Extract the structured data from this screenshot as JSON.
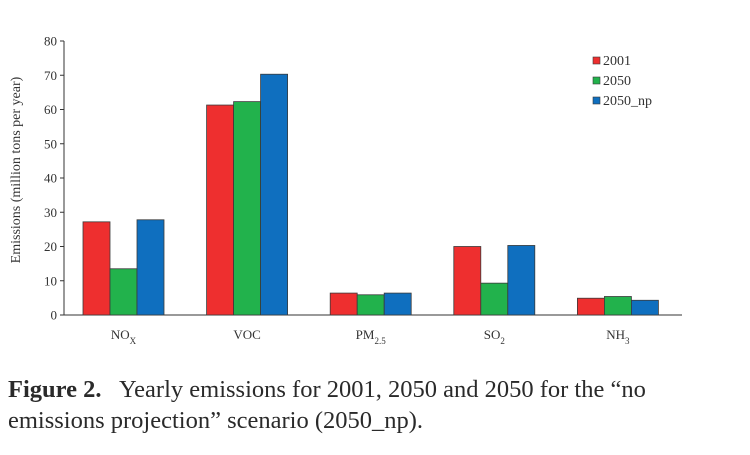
{
  "chart_data": {
    "type": "bar",
    "ylabel": "Emissions (million tons per year)",
    "xlabel": "",
    "ylim": [
      0,
      80
    ],
    "yticks": [
      0,
      10,
      20,
      30,
      40,
      50,
      60,
      70,
      80
    ],
    "categories": [
      {
        "base": "NO",
        "sub": "X"
      },
      {
        "base": "VOC",
        "sub": ""
      },
      {
        "base": "PM",
        "sub": "2.5"
      },
      {
        "base": "SO",
        "sub": "2"
      },
      {
        "base": "NH",
        "sub": "3"
      }
    ],
    "series": [
      {
        "name": "2001",
        "color": "#ee2f2f",
        "values": [
          27.2,
          61.3,
          6.4,
          20.0,
          4.9
        ]
      },
      {
        "name": "2050",
        "color": "#22b24c",
        "values": [
          13.5,
          62.3,
          5.9,
          9.3,
          5.4
        ]
      },
      {
        "name": "2050_np",
        "color": "#0f6fbf",
        "values": [
          27.8,
          70.3,
          6.4,
          20.3,
          4.3
        ]
      }
    ],
    "legend_position": "top-right",
    "grid": false
  },
  "caption": {
    "label": "Figure 2.",
    "text": "Yearly emissions for 2001, 2050 and 2050 for the “no emissions projection” scenario (2050_np)."
  }
}
